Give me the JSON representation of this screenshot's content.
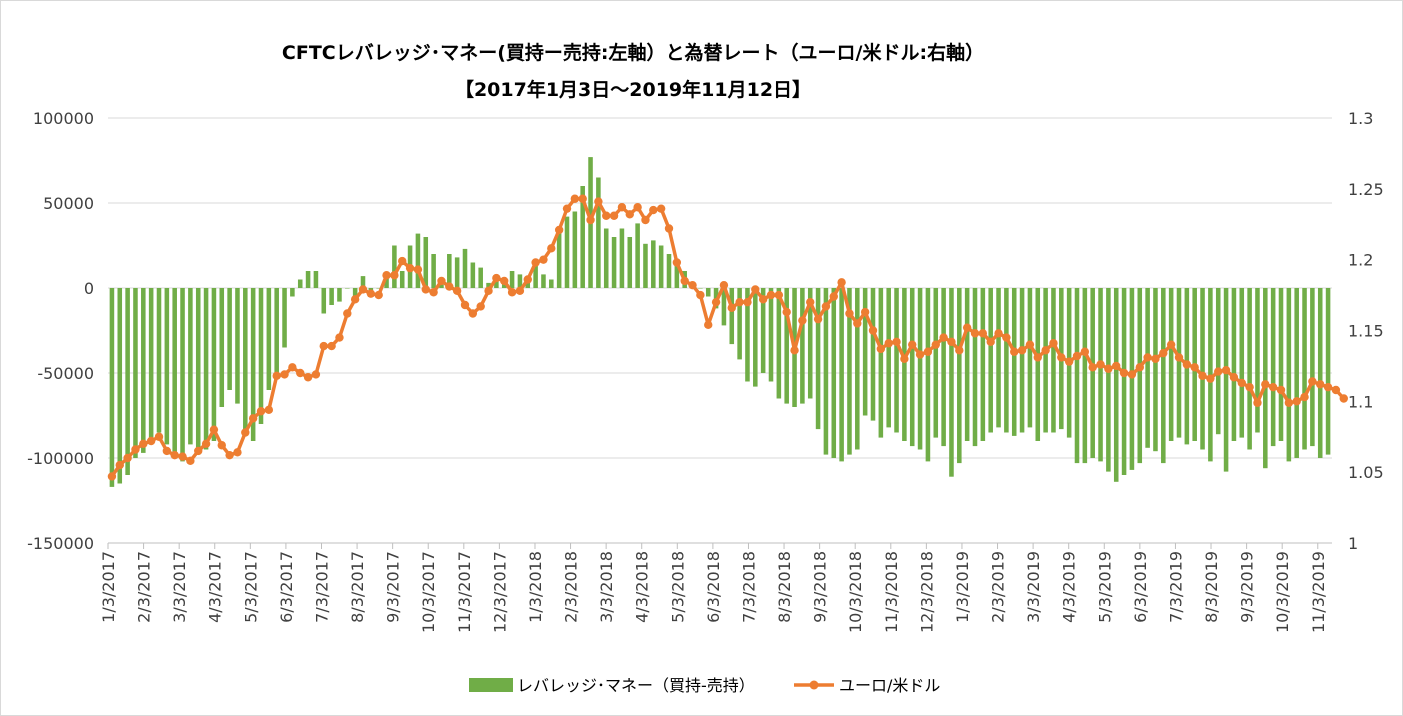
{
  "chart_data": {
    "type": "bar+line",
    "title": "CFTCレバレッジ･マネー(買持ー売持:左軸）と為替レート（ユーロ/米ドル:右軸）",
    "subtitle": "【2017年1月3日～2019年11月12日】",
    "left_axis": {
      "ylim": [
        -150000,
        100000
      ],
      "ticks": [
        "100000",
        "50000",
        "0",
        "-50000",
        "-100000",
        "-150000"
      ]
    },
    "right_axis": {
      "ylim": [
        1,
        1.3
      ],
      "ticks": [
        "1.3",
        "1.25",
        "1.2",
        "1.15",
        "1.1",
        "1.05",
        "1"
      ]
    },
    "x_tick_labels": [
      "1/3/2017",
      "2/3/2017",
      "3/3/2017",
      "4/3/2017",
      "5/3/2017",
      "6/3/2017",
      "7/3/2017",
      "8/3/2017",
      "9/3/2017",
      "10/3/2017",
      "11/3/2017",
      "12/3/2017",
      "1/3/2018",
      "2/3/2018",
      "3/3/2018",
      "4/3/2018",
      "5/3/2018",
      "6/3/2018",
      "7/3/2018",
      "8/3/2018",
      "9/3/2018",
      "10/3/2018",
      "11/3/2018",
      "12/3/2018",
      "1/3/2019",
      "2/3/2019",
      "3/3/2019",
      "4/3/2019",
      "5/3/2019",
      "6/3/2019",
      "7/3/2019",
      "8/3/2019",
      "9/3/2019",
      "10/3/2019",
      "11/3/2019"
    ],
    "grid": "horizontal",
    "legend_position": "bottom",
    "series": [
      {
        "name": "レバレッジ･マネー（買持-売持）",
        "type": "bar",
        "axis": "left",
        "color": "#70ad47",
        "values": [
          -117000,
          -115000,
          -110000,
          -100000,
          -97000,
          -90000,
          -85000,
          -92000,
          -100000,
          -102000,
          -92000,
          -98000,
          -95000,
          -90000,
          -70000,
          -60000,
          -68000,
          -85000,
          -90000,
          -80000,
          -60000,
          -50000,
          -35000,
          -5000,
          5000,
          10000,
          10000,
          -15000,
          -10000,
          -8000,
          0,
          -5000,
          7000,
          -2000,
          0,
          8000,
          25000,
          10000,
          25000,
          32000,
          30000,
          20000,
          2000,
          20000,
          18000,
          23000,
          15000,
          12000,
          3000,
          5000,
          5000,
          10000,
          8000,
          5000,
          15000,
          8000,
          5000,
          35000,
          42000,
          45000,
          60000,
          77000,
          65000,
          35000,
          30000,
          35000,
          30000,
          38000,
          26000,
          28000,
          25000,
          20000,
          15000,
          10000,
          3000,
          0,
          -5000,
          -12000,
          -22000,
          -33000,
          -42000,
          -55000,
          -58000,
          -50000,
          -55000,
          -65000,
          -68000,
          -70000,
          -68000,
          -65000,
          -83000,
          -98000,
          -100000,
          -102000,
          -98000,
          -95000,
          -75000,
          -78000,
          -88000,
          -82000,
          -85000,
          -90000,
          -93000,
          -95000,
          -102000,
          -88000,
          -93000,
          -111000,
          -103000,
          -90000,
          -93000,
          -90000,
          -85000,
          -82000,
          -85000,
          -87000,
          -85000,
          -82000,
          -90000,
          -85000,
          -85000,
          -83000,
          -88000,
          -103000,
          -103000,
          -100000,
          -102000,
          -108000,
          -114000,
          -110000,
          -107000,
          -103000,
          -94000,
          -96000,
          -103000,
          -90000,
          -88000,
          -92000,
          -90000,
          -95000,
          -102000,
          -86000,
          -108000,
          -90000,
          -88000,
          -95000,
          -85000,
          -106000,
          -93000,
          -90000,
          -102000,
          -100000,
          -95000,
          -93000,
          -100000,
          -98000
        ]
      },
      {
        "name": "ユーロ/米ドル",
        "type": "line",
        "axis": "right",
        "color": "#ed7d31",
        "values": [
          1.047,
          1.055,
          1.06,
          1.066,
          1.07,
          1.072,
          1.075,
          1.065,
          1.062,
          1.061,
          1.058,
          1.065,
          1.07,
          1.08,
          1.069,
          1.062,
          1.064,
          1.078,
          1.088,
          1.093,
          1.094,
          1.118,
          1.119,
          1.124,
          1.12,
          1.117,
          1.119,
          1.139,
          1.139,
          1.145,
          1.162,
          1.172,
          1.179,
          1.176,
          1.175,
          1.189,
          1.189,
          1.199,
          1.194,
          1.193,
          1.179,
          1.177,
          1.185,
          1.181,
          1.178,
          1.168,
          1.162,
          1.167,
          1.178,
          1.187,
          1.185,
          1.177,
          1.178,
          1.186,
          1.198,
          1.2,
          1.208,
          1.221,
          1.236,
          1.243,
          1.243,
          1.228,
          1.241,
          1.231,
          1.231,
          1.237,
          1.232,
          1.237,
          1.228,
          1.235,
          1.236,
          1.222,
          1.198,
          1.185,
          1.182,
          1.175,
          1.154,
          1.17,
          1.182,
          1.166,
          1.17,
          1.17,
          1.179,
          1.172,
          1.175,
          1.175,
          1.163,
          1.136,
          1.157,
          1.17,
          1.158,
          1.167,
          1.174,
          1.184,
          1.162,
          1.155,
          1.163,
          1.15,
          1.137,
          1.141,
          1.142,
          1.13,
          1.14,
          1.133,
          1.135,
          1.14,
          1.145,
          1.142,
          1.136,
          1.152,
          1.148,
          1.148,
          1.142,
          1.148,
          1.145,
          1.135,
          1.136,
          1.14,
          1.131,
          1.136,
          1.141,
          1.131,
          1.128,
          1.132,
          1.135,
          1.124,
          1.126,
          1.123,
          1.125,
          1.12,
          1.119,
          1.124,
          1.131,
          1.13,
          1.134,
          1.14,
          1.131,
          1.126,
          1.124,
          1.118,
          1.116,
          1.121,
          1.122,
          1.117,
          1.113,
          1.11,
          1.099,
          1.112,
          1.11,
          1.108,
          1.099,
          1.1,
          1.103,
          1.114,
          1.112,
          1.11,
          1.108,
          1.102
        ]
      }
    ]
  }
}
